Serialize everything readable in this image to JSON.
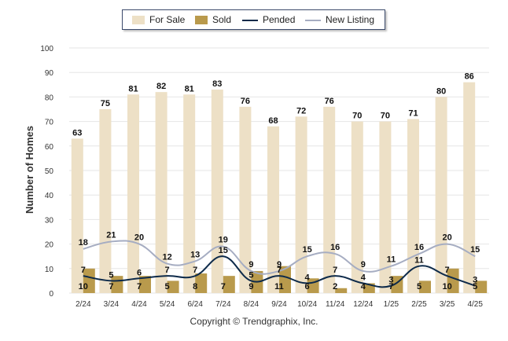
{
  "chart_data": {
    "type": "bar",
    "title": "",
    "xlabel": "",
    "ylabel": "Number of Homes",
    "ylim": [
      0,
      100
    ],
    "yticks": [
      0,
      10,
      20,
      30,
      40,
      50,
      60,
      70,
      80,
      90,
      100
    ],
    "categories": [
      "2/24",
      "3/24",
      "4/24",
      "5/24",
      "6/24",
      "7/24",
      "8/24",
      "9/24",
      "10/24",
      "11/24",
      "12/24",
      "1/25",
      "2/25",
      "3/25",
      "4/25"
    ],
    "series": [
      {
        "name": "For Sale",
        "kind": "bar",
        "color": "#ede0c6",
        "values": [
          63,
          75,
          81,
          82,
          81,
          83,
          76,
          68,
          72,
          76,
          70,
          70,
          71,
          80,
          86
        ]
      },
      {
        "name": "Sold",
        "kind": "bar",
        "color": "#b99a4c",
        "values": [
          10,
          7,
          7,
          5,
          8,
          7,
          9,
          11,
          6,
          2,
          4,
          7,
          5,
          10,
          5
        ]
      },
      {
        "name": "Pended",
        "kind": "line",
        "color": "#0d2a4a",
        "values": [
          7,
          5,
          6,
          7,
          7,
          15,
          5,
          7,
          4,
          7,
          4,
          3,
          11,
          7,
          3
        ]
      },
      {
        "name": "New Listing",
        "kind": "line",
        "color": "#a6adc2",
        "values": [
          18,
          21,
          20,
          12,
          13,
          19,
          9,
          9,
          15,
          16,
          9,
          11,
          16,
          20,
          15
        ]
      }
    ],
    "legend_position": "top-center",
    "grid": true
  },
  "copyright": "Copyright © Trendgraphix, Inc."
}
